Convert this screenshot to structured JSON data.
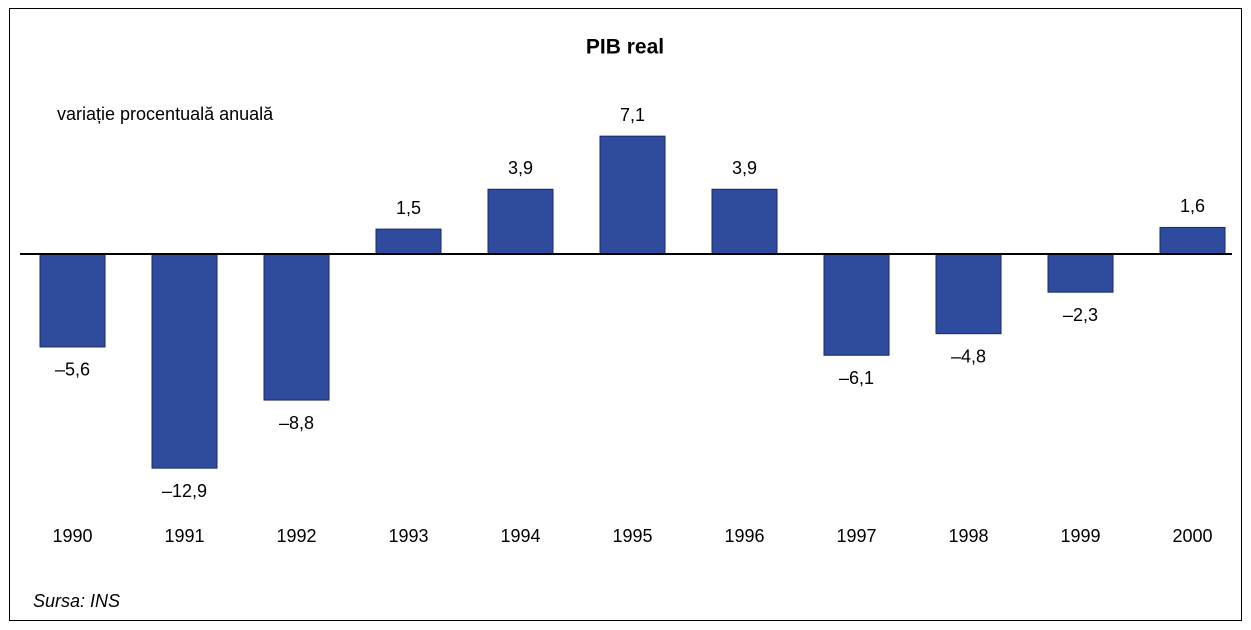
{
  "chart_data": {
    "type": "bar",
    "title": "PIB real",
    "subtitle": "variație procentuală anuală",
    "note": "Sursa: INS",
    "categories": [
      "1990",
      "1991",
      "1992",
      "1993",
      "1994",
      "1995",
      "1996",
      "1997",
      "1998",
      "1999",
      "2000"
    ],
    "values": [
      -5.6,
      -12.9,
      -8.8,
      1.5,
      3.9,
      7.1,
      3.9,
      -6.1,
      -4.8,
      -2.3,
      1.6
    ],
    "value_labels": [
      "–5,6",
      "–12,9",
      "–8,8",
      "1,5",
      "3,9",
      "7,1",
      "3,9",
      "–6,1",
      "–4,8",
      "–2,3",
      "1,6"
    ],
    "color": "#2e4b9e"
  }
}
